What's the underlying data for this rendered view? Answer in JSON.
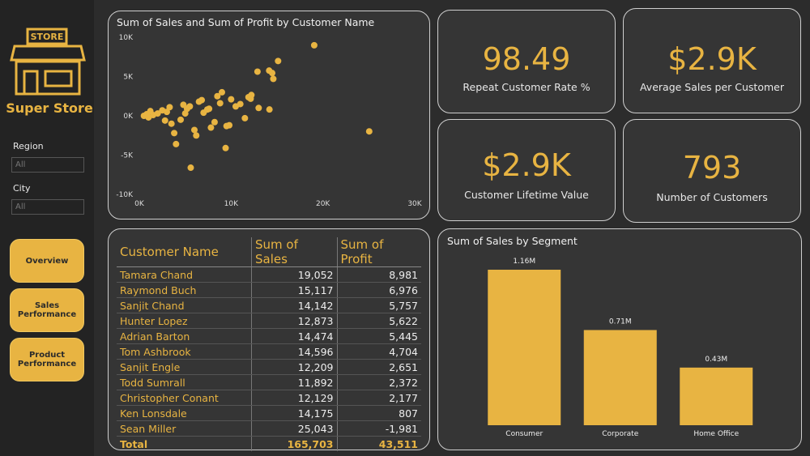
{
  "sidebar": {
    "logo_sign": "STORE",
    "brand": "Super Store",
    "filters": [
      {
        "label": "Region",
        "value": "All"
      },
      {
        "label": "City",
        "value": "All"
      }
    ],
    "buttons": [
      "Overview",
      "Sales Performance",
      "Product Performance"
    ]
  },
  "kpis": [
    {
      "value": "98.49",
      "label": "Repeat Customer Rate %"
    },
    {
      "value": "$2.9K",
      "label": "Average Sales per Customer"
    },
    {
      "value": "$2.9K",
      "label": "Customer Lifetime Value"
    },
    {
      "value": "793",
      "label": "Number of Customers"
    }
  ],
  "table": {
    "headers": [
      "Customer Name",
      "Sum of Sales",
      "Sum of Profit"
    ],
    "rows": [
      [
        "Tamara Chand",
        "19,052",
        "8,981"
      ],
      [
        "Raymond Buch",
        "15,117",
        "6,976"
      ],
      [
        "Sanjit Chand",
        "14,142",
        "5,757"
      ],
      [
        "Hunter Lopez",
        "12,873",
        "5,622"
      ],
      [
        "Adrian Barton",
        "14,474",
        "5,445"
      ],
      [
        "Tom Ashbrook",
        "14,596",
        "4,704"
      ],
      [
        "Sanjit Engle",
        "12,209",
        "2,651"
      ],
      [
        "Todd Sumrall",
        "11,892",
        "2,372"
      ],
      [
        "Christopher Conant",
        "12,129",
        "2,177"
      ],
      [
        "Ken Lonsdale",
        "14,175",
        "807"
      ],
      [
        "Sean Miller",
        "25,043",
        "-1,981"
      ]
    ],
    "total": [
      "Total",
      "165,703",
      "43,511"
    ]
  },
  "chart_data": [
    {
      "type": "scatter",
      "title": "Sum of Sales and Sum of Profit by Customer Name",
      "color": "#e8b442",
      "x": [
        19052,
        15117,
        14142,
        12873,
        14474,
        14596,
        12209,
        11892,
        12129,
        14175,
        25043,
        5600,
        9400,
        4000,
        3800,
        6000,
        7800,
        8500,
        9000,
        10500,
        11000,
        8200,
        6500,
        5200,
        3000,
        2000,
        1500,
        1000,
        500,
        2500,
        4500,
        5500,
        7000,
        8800,
        9500,
        3500,
        6200,
        7400,
        4800,
        2800,
        1200,
        800,
        10000,
        13000,
        11500,
        6800,
        5000,
        3300,
        9800,
        7600
      ],
      "values": [
        8981,
        6976,
        5757,
        5622,
        5445,
        4704,
        2651,
        2372,
        2177,
        807,
        -1981,
        -6600,
        -4100,
        -3600,
        -2200,
        -1800,
        -1500,
        2500,
        3000,
        1200,
        1500,
        -800,
        1800,
        900,
        500,
        300,
        100,
        -200,
        0,
        700,
        -500,
        1200,
        400,
        1600,
        -1300,
        -1000,
        -2500,
        800,
        1400,
        -600,
        600,
        200,
        2100,
        1000,
        -300,
        2000,
        300,
        1100,
        -1200,
        900
      ],
      "xlim": [
        0,
        30000
      ],
      "xticks": [
        {
          "value": 0,
          "label": "0K"
        },
        {
          "value": 10000,
          "label": "10K"
        },
        {
          "value": 20000,
          "label": "20K"
        },
        {
          "value": 30000,
          "label": "30K"
        }
      ],
      "ylim": [
        -10000,
        10000
      ],
      "yticks": [
        {
          "value": -10000,
          "label": "-10K"
        },
        {
          "value": -5000,
          "label": "-5K"
        },
        {
          "value": 0,
          "label": "0K"
        },
        {
          "value": 5000,
          "label": "5K"
        },
        {
          "value": 10000,
          "label": "10K"
        }
      ]
    },
    {
      "type": "bar",
      "title": "Sum of Sales by Segment",
      "color": "#e8b442",
      "categories": [
        "Consumer",
        "Corporate",
        "Home Office"
      ],
      "values": [
        1.16,
        0.71,
        0.43
      ],
      "value_labels": [
        "1.16M",
        "0.71M",
        "0.43M"
      ]
    }
  ]
}
